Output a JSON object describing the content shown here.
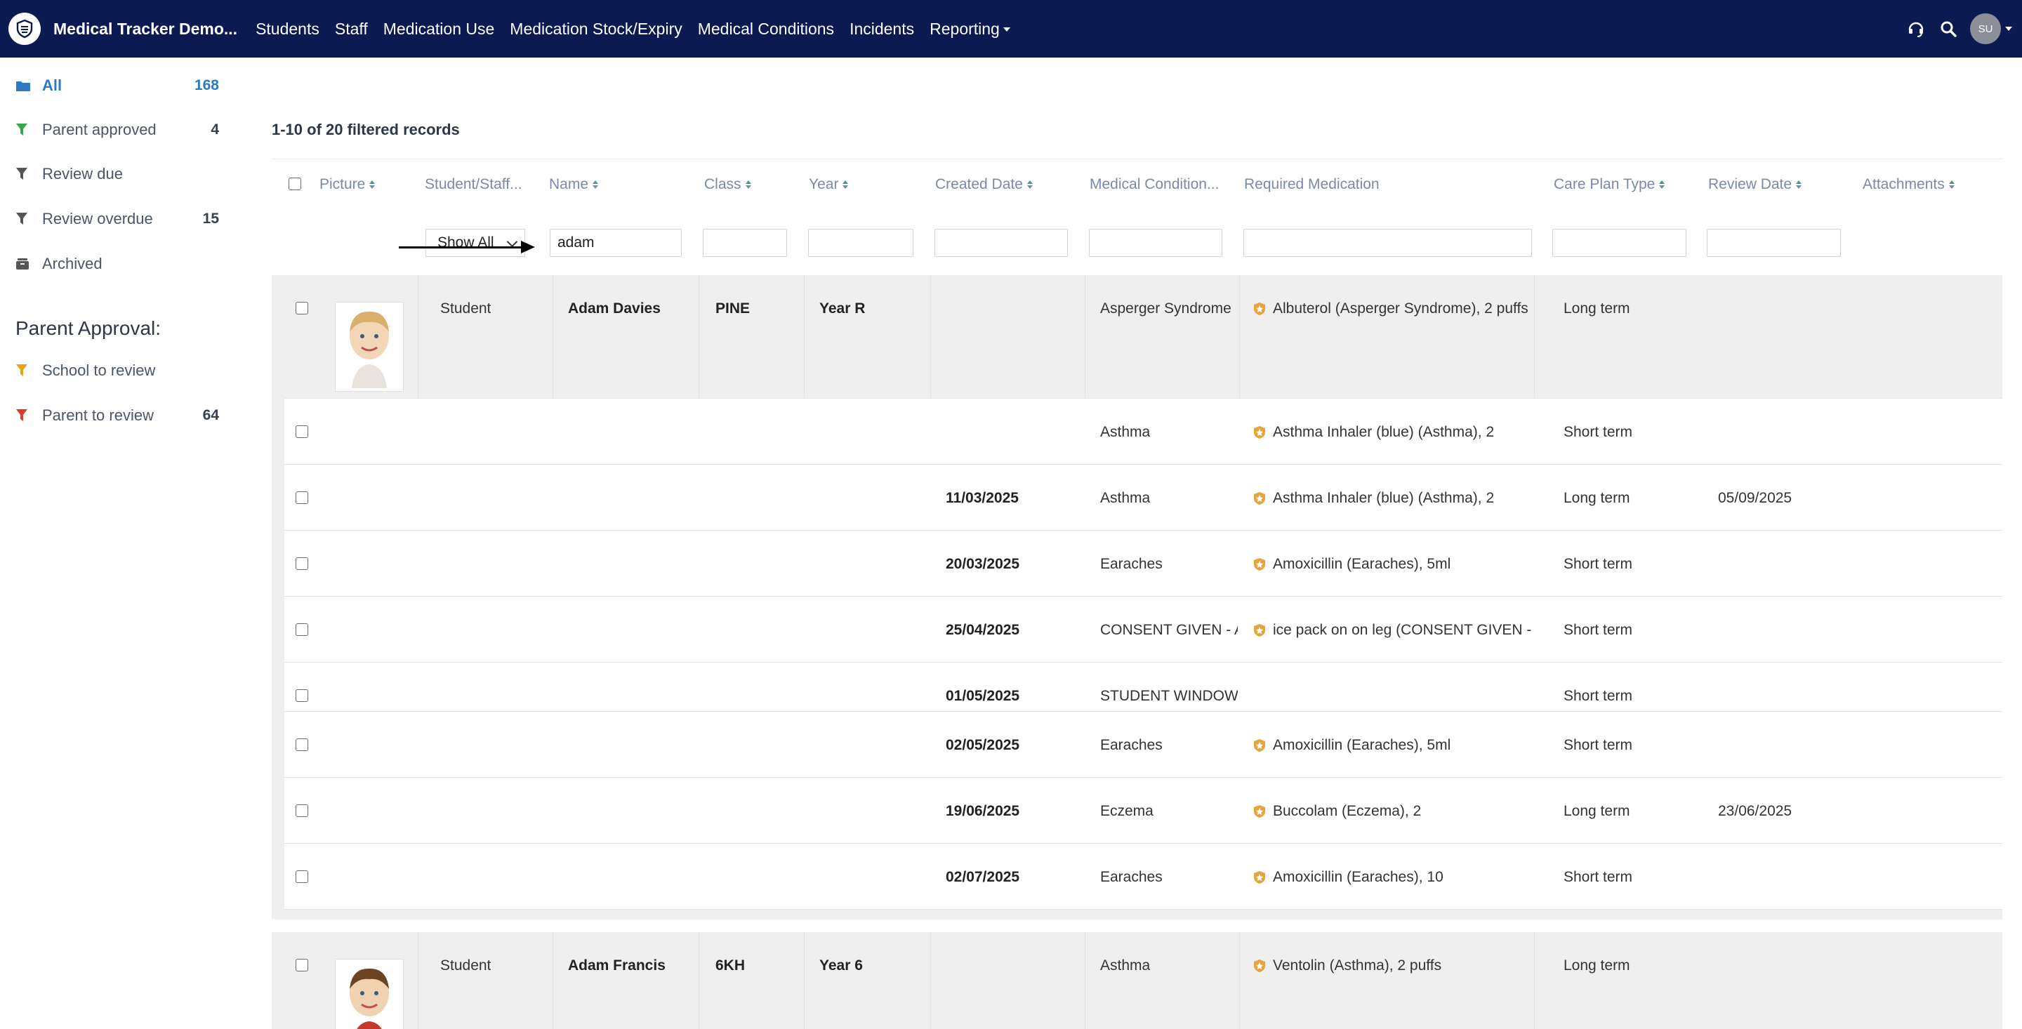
{
  "navbar": {
    "brand": "Medical Tracker Demo...",
    "items": [
      "Students",
      "Staff",
      "Medication Use",
      "Medication Stock/Expiry",
      "Medical Conditions",
      "Incidents",
      "Reporting"
    ],
    "avatar": "SU"
  },
  "sidebar": {
    "items": [
      {
        "label": "All",
        "count": "168",
        "icon": "folder-icon",
        "color": "#2f78c4"
      },
      {
        "label": "Parent approved",
        "count": "4",
        "icon": "filter-icon",
        "color": "#3aa64a"
      },
      {
        "label": "Review due",
        "count": "",
        "icon": "filter-icon",
        "color": "#555555"
      },
      {
        "label": "Review overdue",
        "count": "15",
        "icon": "filter-icon",
        "color": "#555555"
      },
      {
        "label": "Archived",
        "count": "",
        "icon": "archive-icon",
        "color": "#555555"
      }
    ],
    "approval_heading": "Parent Approval:",
    "approval_items": [
      {
        "label": "School to review",
        "count": "",
        "icon": "filter-icon",
        "color": "#e8a317"
      },
      {
        "label": "Parent to review",
        "count": "64",
        "icon": "filter-icon",
        "color": "#e0392b"
      }
    ]
  },
  "records_summary": "1-10 of 20 filtered records",
  "columns": [
    "Picture",
    "Student/Staff...",
    "Name",
    "Class",
    "Year",
    "Created Date",
    "Medical Condition...",
    "Required Medication",
    "Care Plan Type",
    "Review Date",
    "Attachments"
  ],
  "filters": {
    "student_staff": "Show All",
    "name": "adam"
  },
  "groups": [
    {
      "type": "Student",
      "name": "Adam Davies",
      "class": "PINE",
      "year": "Year R",
      "rows": [
        {
          "created": "",
          "condition": "Asperger Syndrome",
          "medication": "Albuterol (Asperger Syndrome), 2 puffs",
          "plan": "Long term",
          "review": ""
        },
        {
          "created": "",
          "condition": "Asthma",
          "medication": "Asthma Inhaler (blue) (Asthma), 2",
          "plan": "Short term",
          "review": ""
        },
        {
          "created": "11/03/2025",
          "condition": "Asthma",
          "medication": "Asthma Inhaler (blue) (Asthma), 2",
          "plan": "Long term",
          "review": "05/09/2025"
        },
        {
          "created": "20/03/2025",
          "condition": "Earaches",
          "medication": "Amoxicillin (Earaches), 5ml",
          "plan": "Short term",
          "review": ""
        },
        {
          "created": "25/04/2025",
          "condition": "CONSENT GIVEN - AS",
          "medication": "ice pack on on leg (CONSENT GIVEN - AS",
          "plan": "Short term",
          "review": ""
        },
        {
          "created": "01/05/2025",
          "condition": "STUDENT WINDOW \\",
          "medication": "",
          "plan": "Short term",
          "review": ""
        },
        {
          "created": "02/05/2025",
          "condition": "Earaches",
          "medication": "Amoxicillin (Earaches), 5ml",
          "plan": "Short term",
          "review": ""
        },
        {
          "created": "19/06/2025",
          "condition": "Eczema",
          "medication": "Buccolam (Eczema), 2",
          "plan": "Long term",
          "review": "23/06/2025"
        },
        {
          "created": "02/07/2025",
          "condition": "Earaches",
          "medication": "Amoxicillin (Earaches), 10",
          "plan": "Short term",
          "review": ""
        }
      ]
    },
    {
      "type": "Student",
      "name": "Adam Francis",
      "class": "6KH",
      "year": "Year 6",
      "rows": [
        {
          "created": "",
          "condition": "Asthma",
          "medication": "Ventolin (Asthma), 2 puffs",
          "plan": "Long term",
          "review": ""
        }
      ]
    }
  ],
  "colors": {
    "navbar": "#0c1a52",
    "accent": "#2f78c4",
    "shield": "#e8a33d"
  }
}
